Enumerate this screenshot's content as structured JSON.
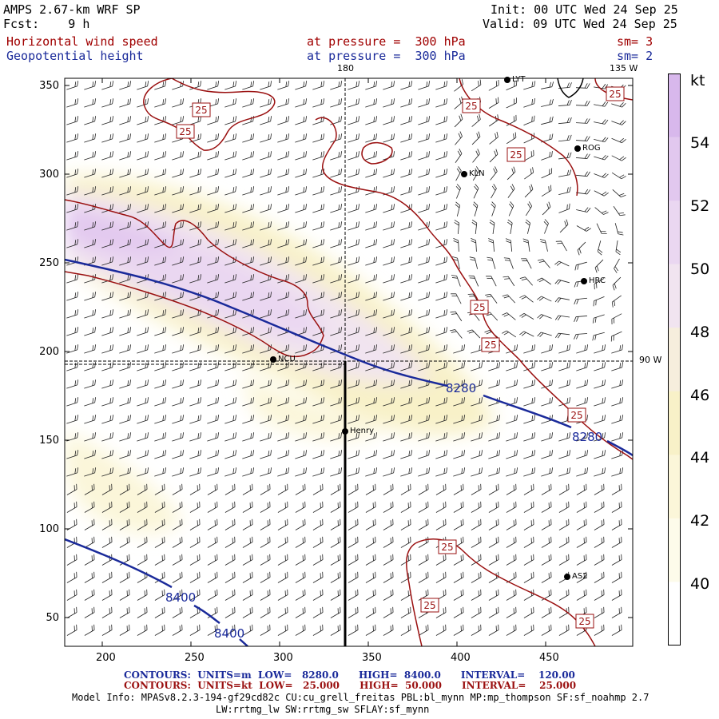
{
  "header": {
    "model": "AMPS 2.67-km WRF SP",
    "fcst": "Fcst:    9 h",
    "init": "Init: 00 UTC Wed 24 Sep 25",
    "valid": "Valid: 09 UTC Wed 24 Sep 25",
    "field1": "Horizontal wind speed",
    "field1_level": "at pressure =  300 hPa",
    "field1_sm": "sm= 3",
    "field2": "Geopotential height",
    "field2_level": "at pressure =  300 hPa",
    "field2_sm": "sm= 2"
  },
  "axes": {
    "x_ticks": [
      "200",
      "250",
      "300",
      "350",
      "400",
      "450"
    ],
    "y_ticks": [
      "350",
      "300",
      "250",
      "200",
      "150",
      "100",
      "50"
    ],
    "meridian_label_180": "180",
    "meridian_label_135w": "135 W",
    "meridian_label_90w": "90 W"
  },
  "colorbar": {
    "unit": "kt",
    "labels": [
      "54",
      "52",
      "50",
      "48",
      "46",
      "44",
      "42",
      "40"
    ],
    "colors": [
      "#d8b8ec",
      "#e2c8ef",
      "#ead7f1",
      "#f1e4f0",
      "#f6eedd",
      "#f8f1c8",
      "#fbf6d9",
      "#fdfbea",
      "#ffffff"
    ]
  },
  "stations": [
    {
      "name": "LYT",
      "label": "LYT"
    },
    {
      "name": "ROG",
      "label": "ROG"
    },
    {
      "name": "KLN",
      "label": "KLN"
    },
    {
      "name": "HRC",
      "label": "HRC"
    },
    {
      "name": "NCU",
      "label": "NCU"
    },
    {
      "name": "Henry",
      "label": "Henry"
    },
    {
      "name": "AS2",
      "label": "AS2"
    }
  ],
  "contour_labels": {
    "height_8280_a": "8280",
    "height_8280_b": "8280",
    "height_8400_a": "8400",
    "height_8400_b": "8400",
    "speed_25": "25"
  },
  "footer": {
    "line1_a": "CONTOURS:  UNITS=m  LOW=   8280.0      HIGH=  8400.0      INTERVAL=    120.00",
    "line2_a": "CONTOURS:  UNITS=kt  LOW=   25.000      HIGH=  50.000      INTERVAL=    25.000",
    "model_info": "Model Info: MPASv8.2.3-194-gf29cd82c CU:cu_grell_freitas PBL:bl_mynn MP:mp_thompson SF:sf_noahmp 2.7",
    "model_info2": "LW:rrtmg_lw SW:rrtmg_sw SFLAY:sf_mynn"
  }
}
